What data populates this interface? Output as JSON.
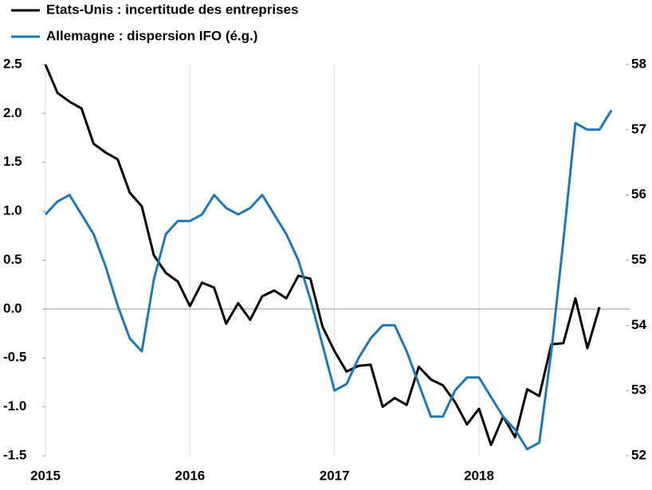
{
  "chart_data": {
    "type": "line",
    "categories": [
      "2015",
      null,
      null,
      null,
      null,
      null,
      null,
      null,
      null,
      null,
      null,
      null,
      "2016",
      null,
      null,
      null,
      null,
      null,
      null,
      null,
      null,
      null,
      null,
      null,
      "2017",
      null,
      null,
      null,
      null,
      null,
      null,
      null,
      null,
      null,
      null,
      null,
      "2018",
      null,
      null,
      null,
      null,
      null,
      null,
      null,
      null,
      null,
      null,
      null
    ],
    "series": [
      {
        "name": "Etats-Unis : incertitude des entreprises",
        "color": "#000000",
        "values": [
          2.5,
          2.21,
          2.12,
          2.05,
          1.69,
          1.6,
          1.53,
          1.19,
          1.05,
          0.55,
          0.37,
          0.28,
          0.03,
          0.27,
          0.22,
          -0.15,
          0.06,
          -0.11,
          0.13,
          0.19,
          0.11,
          0.34,
          0.31,
          -0.18,
          -0.43,
          -0.64,
          -0.58,
          -0.57,
          -1.0,
          -0.91,
          -0.98,
          -0.59,
          -0.72,
          -0.78,
          -0.95,
          -1.18,
          -1.02,
          -1.39,
          -1.1,
          -1.31,
          -0.82,
          -0.89,
          -0.36,
          -0.35,
          0.11,
          -0.4,
          0.02,
          null
        ]
      },
      {
        "name": "Allemagne : dispersion IFO (é.g.)",
        "color": "#1f78b4",
        "axis": "y2",
        "values": [
          55.7,
          55.9,
          56.0,
          55.7,
          55.4,
          54.9,
          54.3,
          53.8,
          53.6,
          54.7,
          55.4,
          55.6,
          55.6,
          55.7,
          56.0,
          55.8,
          55.7,
          55.8,
          56.0,
          55.7,
          55.4,
          55.0,
          54.4,
          53.7,
          53.0,
          53.1,
          53.5,
          53.8,
          54.0,
          54.0,
          53.6,
          53.1,
          52.6,
          52.6,
          53.0,
          53.2,
          53.2,
          52.9,
          52.6,
          52.4,
          52.1,
          52.2,
          53.6,
          55.3,
          57.1,
          57.0,
          57.0,
          57.3
        ]
      }
    ],
    "ylim": [
      -1.5,
      2.5
    ],
    "yticks": [
      2.5,
      {
        "value": 2,
        "label": "2.0"
      },
      1.5,
      {
        "value": 1,
        "label": "1.0"
      },
      0.5,
      {
        "value": 0,
        "label": "0.0"
      },
      -0.5,
      {
        "value": -1,
        "label": "-1.0"
      },
      -1.5
    ],
    "y2lim": [
      52,
      58
    ],
    "y2ticks": [
      52,
      53,
      54,
      55,
      56,
      57,
      58
    ],
    "negative_tick_color": "#e00000",
    "grid": true,
    "legend": "top-left"
  }
}
